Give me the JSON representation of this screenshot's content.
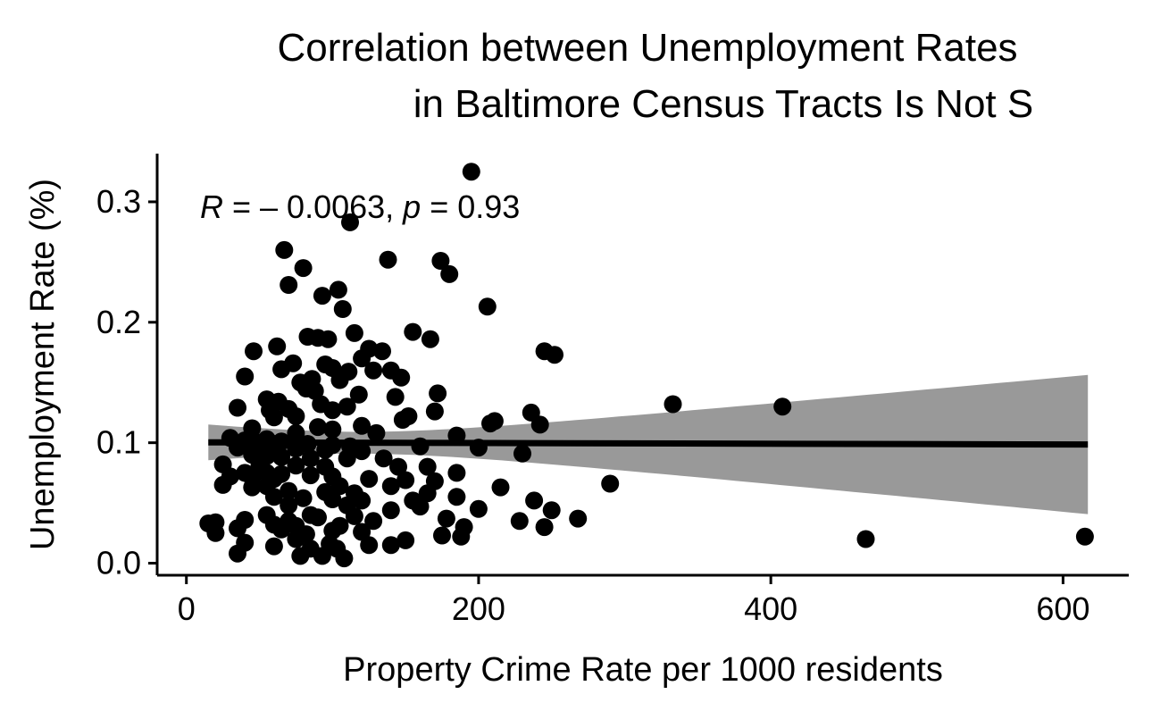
{
  "chart_data": {
    "type": "scatter",
    "title_lines": [
      "Correlation between Unemployment Rates",
      "in Baltimore Census Tracts Is Not S"
    ],
    "xlabel": "Property Crime Rate per 1000 residents",
    "ylabel": "Unemployment Rate (%)",
    "xlim": [
      -20,
      645
    ],
    "ylim": [
      -0.01,
      0.34
    ],
    "x_ticks": [
      0,
      200,
      400,
      600
    ],
    "y_ticks": [
      0.0,
      0.1,
      0.2,
      0.3
    ],
    "x_tick_labels": [
      "0",
      "200",
      "400",
      "600"
    ],
    "y_tick_labels": [
      "0.0",
      "0.1",
      "0.2",
      "0.3"
    ],
    "annotation": {
      "r_symbol": "R",
      "r_value": " = – 0.0063, ",
      "p_symbol": "p",
      "p_value": " = 0.93"
    },
    "grid": false,
    "legend": "none",
    "fit": {
      "method": "lm",
      "x_range": [
        15,
        617
      ],
      "y_at_min": 0.1003,
      "y_at_max": 0.0985,
      "ci_at_min": [
        0.0855,
        0.1152
      ],
      "ci_at_max": [
        0.0406,
        0.1562
      ]
    },
    "colors": {
      "points": "#000000",
      "line": "#000000",
      "ribbon": "#999999"
    },
    "points": [
      [
        195,
        0.325
      ],
      [
        112,
        0.283
      ],
      [
        67,
        0.26
      ],
      [
        138,
        0.252
      ],
      [
        174,
        0.251
      ],
      [
        80,
        0.245
      ],
      [
        180,
        0.24
      ],
      [
        70,
        0.231
      ],
      [
        104,
        0.227
      ],
      [
        93,
        0.222
      ],
      [
        206,
        0.213
      ],
      [
        107,
        0.211
      ],
      [
        155,
        0.192
      ],
      [
        115,
        0.191
      ],
      [
        83,
        0.188
      ],
      [
        90,
        0.187
      ],
      [
        97,
        0.186
      ],
      [
        167,
        0.186
      ],
      [
        62,
        0.18
      ],
      [
        125,
        0.178
      ],
      [
        134,
        0.176
      ],
      [
        46,
        0.176
      ],
      [
        245,
        0.176
      ],
      [
        252,
        0.173
      ],
      [
        120,
        0.17
      ],
      [
        73,
        0.166
      ],
      [
        95,
        0.165
      ],
      [
        100,
        0.162
      ],
      [
        128,
        0.16
      ],
      [
        65,
        0.161
      ],
      [
        111,
        0.159
      ],
      [
        140,
        0.16
      ],
      [
        40,
        0.155
      ],
      [
        147,
        0.154
      ],
      [
        86,
        0.153
      ],
      [
        105,
        0.152
      ],
      [
        78,
        0.15
      ],
      [
        82,
        0.145
      ],
      [
        88,
        0.143
      ],
      [
        118,
        0.14
      ],
      [
        172,
        0.141
      ],
      [
        143,
        0.138
      ],
      [
        55,
        0.136
      ],
      [
        63,
        0.134
      ],
      [
        92,
        0.132
      ],
      [
        110,
        0.13
      ],
      [
        35,
        0.129
      ],
      [
        70,
        0.128
      ],
      [
        57,
        0.127
      ],
      [
        100,
        0.127
      ],
      [
        333,
        0.132
      ],
      [
        408,
        0.13
      ],
      [
        236,
        0.125
      ],
      [
        170,
        0.126
      ],
      [
        152,
        0.122
      ],
      [
        75,
        0.122
      ],
      [
        60,
        0.121
      ],
      [
        148,
        0.119
      ],
      [
        211,
        0.118
      ],
      [
        242,
        0.115
      ],
      [
        120,
        0.114
      ],
      [
        208,
        0.116
      ],
      [
        90,
        0.113
      ],
      [
        45,
        0.112
      ],
      [
        100,
        0.111
      ],
      [
        75,
        0.108
      ],
      [
        130,
        0.108
      ],
      [
        185,
        0.106
      ],
      [
        30,
        0.104
      ],
      [
        40,
        0.102
      ],
      [
        55,
        0.103
      ],
      [
        50,
        0.1
      ],
      [
        60,
        0.099
      ],
      [
        65,
        0.101
      ],
      [
        83,
        0.099
      ],
      [
        100,
        0.098
      ],
      [
        112,
        0.097
      ],
      [
        160,
        0.097
      ],
      [
        35,
        0.096
      ],
      [
        75,
        0.095
      ],
      [
        95,
        0.094
      ],
      [
        120,
        0.093
      ],
      [
        200,
        0.096
      ],
      [
        230,
        0.091
      ],
      [
        45,
        0.09
      ],
      [
        55,
        0.089
      ],
      [
        65,
        0.088
      ],
      [
        85,
        0.087
      ],
      [
        110,
        0.087
      ],
      [
        135,
        0.087
      ],
      [
        25,
        0.082
      ],
      [
        50,
        0.081
      ],
      [
        75,
        0.081
      ],
      [
        95,
        0.08
      ],
      [
        145,
        0.08
      ],
      [
        165,
        0.08
      ],
      [
        40,
        0.075
      ],
      [
        55,
        0.075
      ],
      [
        65,
        0.074
      ],
      [
        85,
        0.073
      ],
      [
        100,
        0.072
      ],
      [
        185,
        0.075
      ],
      [
        30,
        0.072
      ],
      [
        45,
        0.071
      ],
      [
        60,
        0.07
      ],
      [
        125,
        0.07
      ],
      [
        150,
        0.069
      ],
      [
        170,
        0.068
      ],
      [
        25,
        0.065
      ],
      [
        55,
        0.064
      ],
      [
        105,
        0.064
      ],
      [
        140,
        0.064
      ],
      [
        215,
        0.063
      ],
      [
        290,
        0.066
      ],
      [
        45,
        0.063
      ],
      [
        70,
        0.06
      ],
      [
        95,
        0.059
      ],
      [
        115,
        0.058
      ],
      [
        165,
        0.058
      ],
      [
        185,
        0.055
      ],
      [
        60,
        0.055
      ],
      [
        80,
        0.054
      ],
      [
        100,
        0.053
      ],
      [
        120,
        0.052
      ],
      [
        155,
        0.052
      ],
      [
        238,
        0.052
      ],
      [
        70,
        0.048
      ],
      [
        110,
        0.048
      ],
      [
        160,
        0.047
      ],
      [
        200,
        0.045
      ],
      [
        250,
        0.044
      ],
      [
        140,
        0.044
      ],
      [
        55,
        0.04
      ],
      [
        85,
        0.04
      ],
      [
        115,
        0.039
      ],
      [
        90,
        0.038
      ],
      [
        178,
        0.037
      ],
      [
        268,
        0.037
      ],
      [
        40,
        0.036
      ],
      [
        70,
        0.035
      ],
      [
        128,
        0.035
      ],
      [
        228,
        0.035
      ],
      [
        20,
        0.034
      ],
      [
        15,
        0.033
      ],
      [
        60,
        0.032
      ],
      [
        75,
        0.031
      ],
      [
        105,
        0.031
      ],
      [
        190,
        0.03
      ],
      [
        245,
        0.03
      ],
      [
        35,
        0.029
      ],
      [
        65,
        0.028
      ],
      [
        100,
        0.027
      ],
      [
        120,
        0.026
      ],
      [
        20,
        0.025
      ],
      [
        82,
        0.024
      ],
      [
        175,
        0.023
      ],
      [
        188,
        0.022
      ],
      [
        615,
        0.022
      ],
      [
        465,
        0.02
      ],
      [
        75,
        0.02
      ],
      [
        150,
        0.019
      ],
      [
        40,
        0.017
      ],
      [
        98,
        0.016
      ],
      [
        125,
        0.015
      ],
      [
        140,
        0.015
      ],
      [
        60,
        0.014
      ],
      [
        85,
        0.012
      ],
      [
        103,
        0.012
      ],
      [
        35,
        0.008
      ],
      [
        78,
        0.006
      ],
      [
        93,
        0.006
      ],
      [
        108,
        0.004
      ]
    ]
  }
}
